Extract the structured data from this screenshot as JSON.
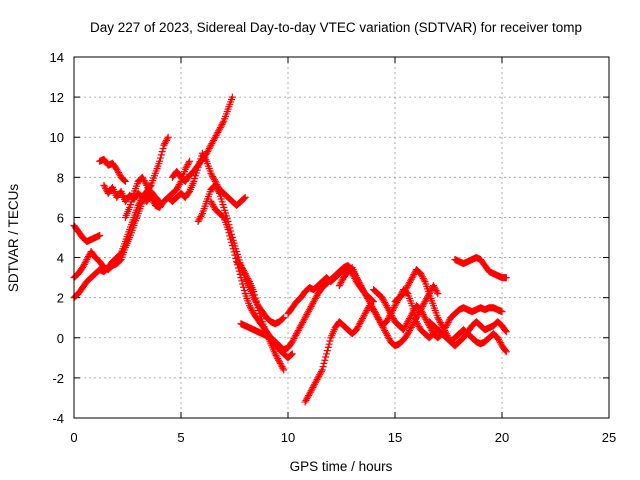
{
  "chart_data": {
    "type": "scatter",
    "title": "Day 227 of 2023, Sidereal Day-to-day VTEC variation (SDTVAR) for receiver tomp",
    "xlabel": "GPS time / hours",
    "ylabel": "SDTVAR / TECUs",
    "xlim": [
      0,
      25
    ],
    "ylim": [
      -4,
      14
    ],
    "xticks": [
      "0",
      "5",
      "10",
      "15",
      "20",
      "25"
    ],
    "yticks": [
      "-4",
      "-2",
      "0",
      "2",
      "4",
      "6",
      "8",
      "10",
      "12",
      "14"
    ],
    "grid": true,
    "marker": "+",
    "color": "#ff0000",
    "series": [
      {
        "x": [
          0.0,
          0.2,
          0.4,
          0.6,
          0.8,
          1.0,
          1.2
        ],
        "y": [
          5.6,
          5.3,
          5.0,
          4.8,
          4.9,
          5.0,
          5.1
        ]
      },
      {
        "x": [
          0.0,
          0.2,
          0.4,
          0.6,
          0.8,
          1.0,
          1.2,
          1.4,
          1.6,
          1.8,
          2.0,
          2.2,
          2.4,
          2.6,
          2.8,
          3.0,
          3.2,
          3.4,
          3.6,
          3.8,
          4.0,
          4.2,
          4.4
        ],
        "y": [
          2.0,
          2.2,
          2.5,
          2.8,
          3.0,
          3.2,
          3.4,
          3.3,
          3.5,
          3.8,
          4.0,
          4.2,
          4.8,
          5.4,
          6.0,
          6.6,
          7.0,
          7.3,
          7.6,
          8.2,
          8.8,
          9.6,
          10.0
        ]
      },
      {
        "x": [
          0.0,
          0.2,
          0.4,
          0.6,
          0.8,
          1.0,
          1.2,
          1.4,
          1.6,
          1.8,
          2.0,
          2.2,
          2.4,
          2.6,
          2.8,
          3.0,
          3.2,
          3.4,
          3.6,
          3.8,
          4.0
        ],
        "y": [
          3.0,
          3.2,
          3.5,
          3.9,
          4.3,
          4.0,
          3.8,
          3.5,
          3.4,
          3.6,
          3.7,
          3.9,
          4.5,
          5.0,
          5.6,
          6.2,
          6.8,
          7.1,
          7.3,
          7.0,
          6.8
        ]
      },
      {
        "x": [
          1.2,
          1.4,
          1.6,
          1.8,
          2.0,
          2.2,
          2.4
        ],
        "y": [
          8.8,
          8.9,
          8.6,
          8.7,
          8.4,
          8.0,
          7.8
        ]
      },
      {
        "x": [
          1.4,
          1.6,
          1.8,
          2.0,
          2.2,
          2.4,
          2.6,
          2.8,
          3.0,
          3.2,
          3.4,
          3.6,
          3.8
        ],
        "y": [
          7.6,
          7.2,
          7.5,
          7.0,
          7.3,
          6.8,
          7.1,
          6.9,
          7.2,
          7.0,
          6.8,
          7.1,
          6.9
        ]
      },
      {
        "x": [
          2.4,
          2.6,
          2.8,
          3.0,
          3.2,
          3.4,
          3.6,
          3.8,
          4.0,
          4.2,
          4.4,
          4.6,
          4.8,
          5.0,
          5.2,
          5.4
        ],
        "y": [
          6.0,
          6.5,
          7.2,
          7.8,
          8.0,
          7.6,
          7.0,
          6.6,
          6.5,
          6.8,
          7.0,
          7.2,
          7.4,
          7.8,
          8.4,
          8.8
        ]
      },
      {
        "x": [
          4.6,
          4.8,
          5.0,
          5.2,
          5.4,
          5.6,
          5.8,
          6.0,
          6.2,
          6.4,
          6.6,
          6.8,
          7.0,
          7.2,
          7.4
        ],
        "y": [
          8.0,
          8.3,
          8.0,
          7.8,
          8.1,
          8.3,
          8.6,
          8.9,
          9.2,
          9.6,
          10.0,
          10.4,
          10.8,
          11.4,
          12.0
        ]
      },
      {
        "x": [
          4.4,
          4.6,
          4.8,
          5.0,
          5.2,
          5.4,
          5.6,
          5.8,
          6.0,
          6.2,
          6.4,
          6.6,
          6.8,
          7.0,
          7.2,
          7.4,
          7.6,
          7.8,
          8.0
        ],
        "y": [
          7.0,
          6.8,
          7.0,
          7.2,
          7.0,
          7.3,
          7.8,
          8.5,
          9.2,
          8.8,
          8.2,
          7.8,
          7.4,
          7.2,
          7.0,
          6.8,
          6.6,
          6.8,
          7.0
        ]
      },
      {
        "x": [
          5.8,
          6.0,
          6.2,
          6.4,
          6.6,
          6.8,
          7.0,
          7.2,
          7.4,
          7.6,
          7.8,
          8.0,
          8.2,
          8.4,
          8.6,
          8.8,
          9.0,
          9.2,
          9.4,
          9.6,
          9.8
        ],
        "y": [
          5.8,
          6.2,
          6.8,
          7.4,
          7.6,
          7.2,
          6.5,
          5.8,
          5.0,
          4.3,
          3.6,
          3.0,
          2.5,
          2.0,
          1.6,
          1.3,
          1.0,
          0.8,
          0.7,
          0.8,
          1.0
        ]
      },
      {
        "x": [
          6.4,
          6.6,
          6.8,
          7.0,
          7.2,
          7.4,
          7.6,
          7.8,
          8.0,
          8.2,
          8.4,
          8.6,
          8.8,
          9.0,
          9.2,
          9.4,
          9.6,
          9.8,
          10.0,
          10.2
        ],
        "y": [
          6.8,
          6.4,
          6.2,
          6.0,
          5.4,
          4.6,
          3.8,
          3.0,
          2.2,
          1.6,
          1.2,
          0.9,
          0.6,
          0.3,
          0.0,
          -0.3,
          -0.6,
          -0.8,
          -1.0,
          -0.8
        ]
      },
      {
        "x": [
          7.6,
          7.8,
          8.0,
          8.2,
          8.4,
          8.6,
          8.8,
          9.0,
          9.2,
          9.4,
          9.6,
          9.8
        ],
        "y": [
          3.8,
          3.6,
          3.2,
          2.8,
          2.3,
          1.5,
          0.8,
          0.2,
          -0.3,
          -0.8,
          -1.2,
          -1.6
        ]
      },
      {
        "x": [
          7.8,
          8.0,
          8.2,
          8.4,
          8.6,
          8.8,
          9.0,
          9.2,
          9.4,
          9.6,
          9.8,
          10.0,
          10.2,
          10.4,
          10.6,
          10.8,
          11.0,
          11.2,
          11.4,
          11.6,
          11.8,
          12.0,
          12.2,
          12.4,
          12.6,
          12.8,
          13.0,
          13.2,
          13.4
        ],
        "y": [
          0.7,
          0.6,
          0.5,
          0.4,
          0.3,
          0.2,
          0.1,
          0.0,
          -0.2,
          -0.4,
          -0.6,
          -0.5,
          -0.2,
          0.2,
          0.6,
          1.0,
          1.4,
          1.8,
          2.2,
          2.5,
          2.7,
          2.9,
          3.1,
          3.3,
          3.5,
          3.6,
          3.4,
          3.0,
          2.6
        ]
      },
      {
        "x": [
          10.0,
          10.2,
          10.4,
          10.6,
          10.8,
          11.0,
          11.2,
          11.4,
          11.6,
          11.8,
          12.0,
          12.2,
          12.4,
          12.6,
          12.8,
          13.0,
          13.2,
          13.4,
          13.6,
          13.8,
          14.0
        ],
        "y": [
          1.2,
          1.5,
          1.8,
          2.0,
          2.3,
          2.5,
          2.4,
          2.6,
          2.8,
          3.0,
          2.8,
          3.0,
          3.2,
          3.4,
          3.5,
          3.2,
          2.8,
          2.5,
          2.2,
          2.0,
          1.8
        ]
      },
      {
        "x": [
          10.8,
          11.0,
          11.2,
          11.4,
          11.6,
          11.8,
          12.0,
          12.2,
          12.4,
          12.6,
          12.8,
          13.0,
          13.2,
          13.4,
          13.6,
          13.8,
          14.0,
          14.2,
          14.4,
          14.6,
          14.8,
          15.0,
          15.2,
          15.4,
          15.6,
          15.8,
          16.0,
          16.2,
          16.4,
          16.6,
          16.8,
          17.0
        ],
        "y": [
          -3.2,
          -2.8,
          -2.4,
          -2.0,
          -1.6,
          -0.8,
          0.0,
          0.5,
          0.8,
          0.6,
          0.4,
          0.2,
          0.4,
          0.8,
          1.2,
          1.6,
          1.4,
          1.0,
          0.6,
          0.8,
          1.2,
          1.6,
          2.0,
          2.4,
          2.2,
          1.6,
          0.8,
          0.4,
          0.2,
          0.0,
          0.2,
          0.4
        ]
      },
      {
        "x": [
          12.4,
          12.6,
          12.8,
          13.0,
          13.2,
          13.4,
          13.6,
          13.8,
          14.0,
          14.2,
          14.4,
          14.6,
          14.8,
          15.0,
          15.2,
          15.4,
          15.6,
          15.8,
          16.0,
          16.2,
          16.4,
          16.6,
          16.8,
          17.0
        ],
        "y": [
          2.6,
          3.0,
          3.3,
          3.5,
          3.0,
          2.6,
          2.2,
          1.8,
          1.4,
          1.0,
          0.6,
          0.2,
          -0.2,
          -0.4,
          -0.3,
          -0.1,
          0.2,
          0.6,
          1.0,
          1.4,
          1.8,
          2.2,
          2.6,
          2.2
        ]
      },
      {
        "x": [
          14.0,
          14.2,
          14.4,
          14.6,
          14.8,
          15.0,
          15.2,
          15.4,
          15.6,
          15.8,
          16.0,
          16.2,
          16.4,
          16.6,
          16.8,
          17.0,
          17.2,
          17.4,
          17.6,
          17.8,
          18.0,
          18.2,
          18.4,
          18.6,
          18.8,
          19.0,
          19.2,
          19.4,
          19.6,
          19.8,
          20.0
        ],
        "y": [
          2.4,
          2.2,
          2.0,
          1.6,
          1.2,
          0.8,
          0.6,
          0.4,
          0.8,
          1.2,
          1.6,
          1.4,
          1.0,
          0.6,
          0.2,
          0.0,
          0.2,
          0.6,
          1.0,
          1.2,
          1.4,
          1.5,
          1.4,
          1.3,
          1.4,
          1.5,
          1.4,
          1.5,
          1.5,
          1.4,
          1.3
        ]
      },
      {
        "x": [
          15.0,
          15.2,
          15.4,
          15.6,
          15.8,
          16.0,
          16.2,
          16.4,
          16.6,
          16.8,
          17.0,
          17.2,
          17.4,
          17.6,
          17.8,
          18.0,
          18.2,
          18.4,
          18.6,
          18.8,
          19.0,
          19.2,
          19.4,
          19.6,
          19.8,
          20.0,
          20.2
        ],
        "y": [
          1.8,
          2.0,
          2.2,
          2.6,
          3.0,
          3.4,
          3.2,
          2.8,
          2.2,
          1.6,
          1.0,
          0.6,
          0.2,
          -0.2,
          -0.4,
          -0.2,
          0.0,
          0.3,
          0.6,
          0.8,
          0.6,
          0.4,
          0.5,
          0.6,
          0.8,
          0.6,
          0.3
        ]
      },
      {
        "x": [
          16.6,
          16.8,
          17.0,
          17.2,
          17.4,
          17.6,
          17.8,
          18.0,
          18.2,
          18.4,
          18.6,
          18.8,
          19.0,
          19.2,
          19.4,
          19.6,
          19.8,
          20.0,
          20.2
        ],
        "y": [
          0.8,
          0.6,
          0.4,
          0.2,
          0.0,
          -0.2,
          0.0,
          0.2,
          0.4,
          0.2,
          0.0,
          -0.2,
          -0.3,
          -0.2,
          0.0,
          0.2,
          0.0,
          -0.4,
          -0.7
        ]
      },
      {
        "x": [
          17.8,
          18.0,
          18.2,
          18.4,
          18.6,
          18.8,
          19.0,
          19.2,
          19.4,
          19.6,
          19.8,
          20.0,
          20.2
        ],
        "y": [
          3.9,
          3.8,
          3.7,
          3.8,
          3.9,
          4.0,
          3.9,
          3.6,
          3.3,
          3.2,
          3.1,
          3.0,
          3.0
        ]
      }
    ]
  }
}
